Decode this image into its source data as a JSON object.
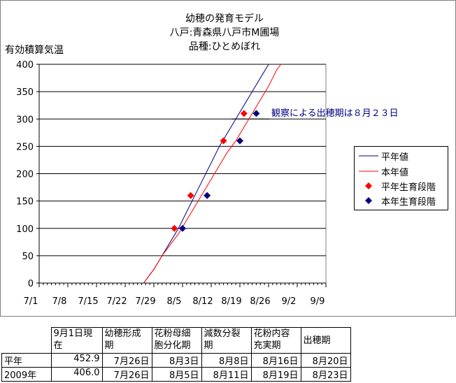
{
  "chart": {
    "title_lines": [
      "幼穂の発育モデル",
      "八戸:青森県八戸市M圃場",
      "品種:ひとめぼれ"
    ],
    "ylabel": "有効積算気温",
    "annotation": "観察による出穂期は８月２３日"
  },
  "legend": {
    "items": [
      {
        "label": "平年値",
        "color": "#000080",
        "kind": "line"
      },
      {
        "label": "本年値",
        "color": "#ff0000",
        "kind": "line"
      },
      {
        "label": "平年生育段階",
        "color": "#ff0000",
        "kind": "marker"
      },
      {
        "label": "本年生育段階",
        "color": "#000080",
        "kind": "marker"
      }
    ]
  },
  "chart_data": {
    "type": "line",
    "title": "幼穂の発育モデル 八戸:青森県八戸市M圃場 品種:ひとめぼれ",
    "ylabel": "有効積算気温",
    "ylim": [
      0,
      400
    ],
    "yticks": [
      0,
      50,
      100,
      150,
      200,
      250,
      300,
      350,
      400
    ],
    "x_tick_labels": [
      "7/1",
      "7/8",
      "7/15",
      "7/22",
      "7/29",
      "8/5",
      "8/12",
      "8/19",
      "8/26",
      "9/2",
      "9/9"
    ],
    "x_tick_days": [
      0,
      7,
      14,
      21,
      28,
      35,
      42,
      49,
      56,
      63,
      70
    ],
    "xlim": [
      0,
      70
    ],
    "grid": "horizontal",
    "legend_position": "right",
    "series": [
      {
        "name": "平年値",
        "color": "#000080",
        "points": [
          [
            25.5,
            0
          ],
          [
            26.5,
            10
          ],
          [
            28,
            25
          ],
          [
            30,
            50
          ],
          [
            32,
            75
          ],
          [
            34,
            100
          ],
          [
            36,
            130
          ],
          [
            38,
            160
          ],
          [
            40,
            190
          ],
          [
            42,
            220
          ],
          [
            44,
            250
          ],
          [
            46,
            275
          ],
          [
            48,
            300
          ],
          [
            50,
            325
          ],
          [
            52,
            350
          ],
          [
            54,
            375
          ],
          [
            56,
            400
          ]
        ]
      },
      {
        "name": "本年値",
        "color": "#ff0000",
        "points": [
          [
            25.5,
            0
          ],
          [
            26.5,
            10
          ],
          [
            28,
            25
          ],
          [
            30,
            50
          ],
          [
            32,
            70
          ],
          [
            34,
            90
          ],
          [
            36,
            115
          ],
          [
            38,
            140
          ],
          [
            40,
            165
          ],
          [
            42,
            190
          ],
          [
            44,
            215
          ],
          [
            46,
            240
          ],
          [
            48,
            260
          ],
          [
            50,
            285
          ],
          [
            52,
            310
          ],
          [
            54,
            335
          ],
          [
            56,
            360
          ],
          [
            58,
            390
          ],
          [
            59,
            400
          ]
        ]
      },
      {
        "name": "平年生育段階",
        "color": "#ff0000",
        "kind": "marker",
        "points": [
          [
            33,
            100
          ],
          [
            37,
            160
          ],
          [
            45,
            260
          ],
          [
            50,
            310
          ]
        ]
      },
      {
        "name": "本年生育段階",
        "color": "#000080",
        "kind": "marker",
        "points": [
          [
            35,
            100
          ],
          [
            41,
            160
          ],
          [
            49,
            260
          ],
          [
            53,
            310
          ]
        ]
      }
    ]
  },
  "table": {
    "headers": [
      "9月1日現在",
      "幼穂形成期",
      "花粉母細胞分化期",
      "減数分裂期",
      "花粉内容充実期",
      "出穂期"
    ],
    "header_lines": [
      [
        "9月1日現",
        "在"
      ],
      [
        "幼穂形成",
        "期"
      ],
      [
        "花粉母細",
        "胞分化期"
      ],
      [
        "減数分裂",
        "期"
      ],
      [
        "花粉内容",
        "充実期"
      ],
      [
        "出穂期"
      ]
    ],
    "rows": [
      {
        "label": "平年",
        "cells": [
          "452.9",
          "7月26日",
          "8月3日",
          "8月8日",
          "8月16日",
          "8月20日"
        ]
      },
      {
        "label": "2009年",
        "cells": [
          "406.0",
          "7月26日",
          "8月5日",
          "8月11日",
          "8月19日",
          "8月23日"
        ]
      }
    ]
  }
}
